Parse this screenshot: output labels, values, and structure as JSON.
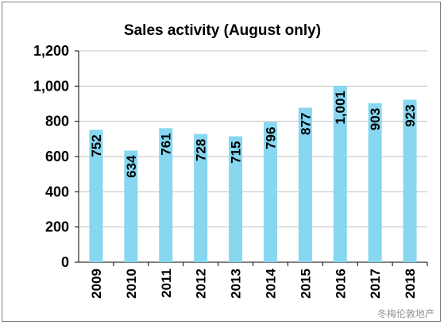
{
  "chart_data": {
    "type": "bar",
    "title": "Sales activity (August only)",
    "xlabel": "",
    "ylabel": "",
    "categories": [
      "2009",
      "2010",
      "2011",
      "2012",
      "2013",
      "2014",
      "2015",
      "2016",
      "2017",
      "2018"
    ],
    "values": [
      752,
      634,
      761,
      728,
      715,
      796,
      877,
      1001,
      903,
      923
    ],
    "data_labels": [
      "752",
      "634",
      "761",
      "728",
      "715",
      "796",
      "877",
      "1,001",
      "903",
      "923"
    ],
    "ylim": [
      0,
      1200
    ],
    "yticks": [
      0,
      200,
      400,
      600,
      800,
      1000,
      1200
    ],
    "ytick_labels": [
      "0",
      "200",
      "400",
      "600",
      "800",
      "1,000",
      "1,200"
    ],
    "grid": true,
    "legend": "none",
    "bar_color": "#87d7f0",
    "grid_color": "#c0c0c0"
  },
  "watermark": "冬梅伦敦地产"
}
